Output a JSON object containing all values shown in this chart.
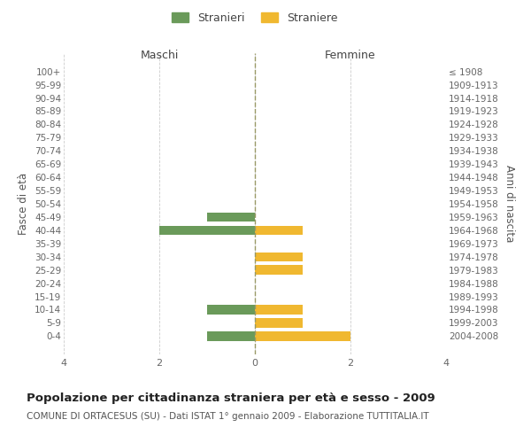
{
  "age_groups": [
    "100+",
    "95-99",
    "90-94",
    "85-89",
    "80-84",
    "75-79",
    "70-74",
    "65-69",
    "60-64",
    "55-59",
    "50-54",
    "45-49",
    "40-44",
    "35-39",
    "30-34",
    "25-29",
    "20-24",
    "15-19",
    "10-14",
    "5-9",
    "0-4"
  ],
  "birth_years": [
    "≤ 1908",
    "1909-1913",
    "1914-1918",
    "1919-1923",
    "1924-1928",
    "1929-1933",
    "1934-1938",
    "1939-1943",
    "1944-1948",
    "1949-1953",
    "1954-1958",
    "1959-1963",
    "1964-1968",
    "1969-1973",
    "1974-1978",
    "1979-1983",
    "1984-1988",
    "1989-1993",
    "1994-1998",
    "1999-2003",
    "2004-2008"
  ],
  "males": [
    0,
    0,
    0,
    0,
    0,
    0,
    0,
    0,
    0,
    0,
    0,
    1,
    2,
    0,
    0,
    0,
    0,
    0,
    1,
    0,
    1
  ],
  "females": [
    0,
    0,
    0,
    0,
    0,
    0,
    0,
    0,
    0,
    0,
    0,
    0,
    1,
    0,
    1,
    1,
    0,
    0,
    1,
    1,
    2
  ],
  "male_color": "#6a9a5a",
  "female_color": "#f0b830",
  "male_label": "Stranieri",
  "female_label": "Straniere",
  "xlabel_left": "Maschi",
  "xlabel_right": "Femmine",
  "ylabel_left": "Fasce di età",
  "ylabel_right": "Anni di nascita",
  "title": "Popolazione per cittadinanza straniera per età e sesso - 2009",
  "subtitle": "COMUNE DI ORTACESUS (SU) - Dati ISTAT 1° gennaio 2009 - Elaborazione TUTTITALIA.IT",
  "xlim": 4,
  "background_color": "#ffffff",
  "grid_color": "#cccccc",
  "center_line_color": "#999966"
}
